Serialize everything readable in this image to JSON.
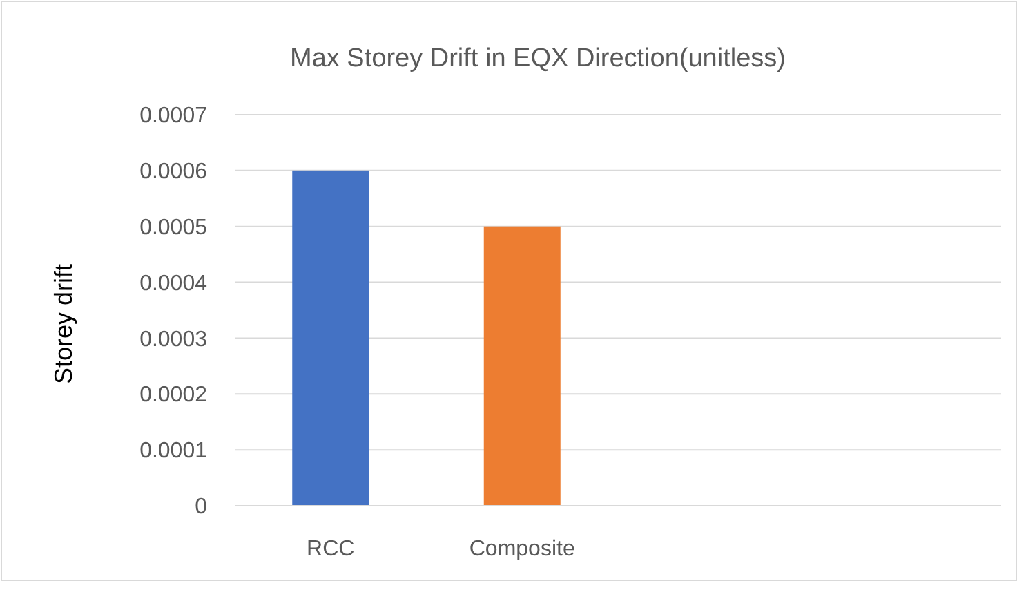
{
  "chart_data": {
    "type": "bar",
    "title": "Max Storey Drift in EQX Direction(unitless)",
    "ylabel": "Storey drift",
    "categories": [
      "RCC",
      "Composite",
      null,
      null
    ],
    "values": [
      0.0006,
      0.0005,
      null,
      null
    ],
    "colors": [
      "#4472c4",
      "#ed7d31",
      null,
      null
    ],
    "ylim": [
      0,
      0.0007
    ],
    "yticks": [
      0,
      0.0001,
      0.0002,
      0.0003,
      0.0004,
      0.0005,
      0.0006,
      0.0007
    ],
    "grid": "y"
  }
}
